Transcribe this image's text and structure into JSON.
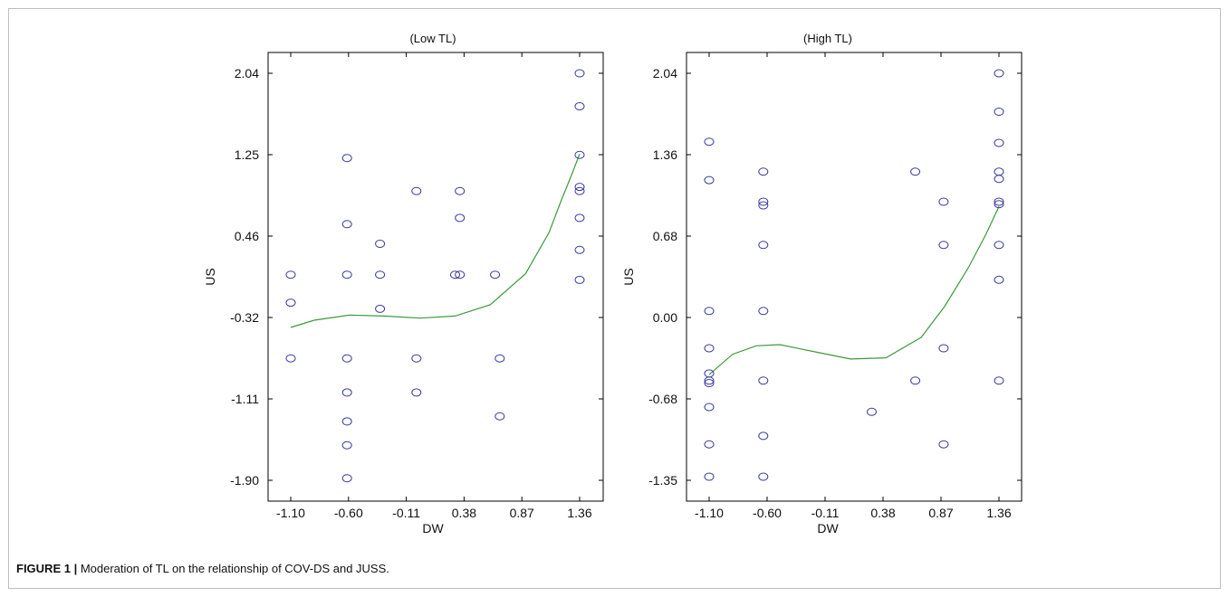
{
  "chart_data": [
    {
      "type": "scatter",
      "title": "(Low TL)",
      "xlabel": "DW",
      "ylabel": "US",
      "x_ticks": [
        "-1.10",
        "-0.60",
        "-0.11",
        "0.38",
        "0.87",
        "1.36"
      ],
      "y_ticks": [
        "2.04",
        "1.25",
        "0.46",
        "-0.32",
        "-1.11",
        "-1.90"
      ],
      "xlim": [
        -1.1,
        1.36
      ],
      "ylim": [
        -1.9,
        2.04
      ],
      "colors": {
        "points": "#3a3aa0",
        "curve": "#3b9a3b"
      },
      "points": [
        [
          1.36,
          2.04
        ],
        [
          1.36,
          1.72
        ],
        [
          1.36,
          1.25
        ],
        [
          1.36,
          0.94
        ],
        [
          1.36,
          0.9
        ],
        [
          1.36,
          0.64
        ],
        [
          1.36,
          0.33
        ],
        [
          1.36,
          0.04
        ],
        [
          -0.62,
          1.22
        ],
        [
          -0.62,
          0.58
        ],
        [
          -0.62,
          0.09
        ],
        [
          -0.62,
          -0.72
        ],
        [
          -0.62,
          -1.05
        ],
        [
          -0.62,
          -1.33
        ],
        [
          -0.62,
          -1.56
        ],
        [
          -0.62,
          -1.88
        ],
        [
          -1.1,
          0.09
        ],
        [
          -1.1,
          -0.18
        ],
        [
          -1.1,
          -0.72
        ],
        [
          -0.34,
          0.39
        ],
        [
          -0.34,
          0.09
        ],
        [
          -0.34,
          -0.24
        ],
        [
          -0.03,
          0.9
        ],
        [
          -0.03,
          -0.72
        ],
        [
          -0.03,
          -1.05
        ],
        [
          0.3,
          0.09
        ],
        [
          0.34,
          0.9
        ],
        [
          0.34,
          0.64
        ],
        [
          0.34,
          0.09
        ],
        [
          0.64,
          0.09
        ],
        [
          0.68,
          -0.72
        ],
        [
          0.68,
          -1.28
        ]
      ],
      "curve": [
        [
          -1.1,
          -0.42
        ],
        [
          -0.9,
          -0.35
        ],
        [
          -0.6,
          -0.3
        ],
        [
          -0.3,
          -0.31
        ],
        [
          0.0,
          -0.33
        ],
        [
          0.3,
          -0.31
        ],
        [
          0.6,
          -0.2
        ],
        [
          0.9,
          0.1
        ],
        [
          1.1,
          0.5
        ],
        [
          1.2,
          0.8
        ],
        [
          1.3,
          1.08
        ],
        [
          1.36,
          1.26
        ]
      ]
    },
    {
      "type": "scatter",
      "title": "(High TL)",
      "xlabel": "DW",
      "ylabel": "US",
      "x_ticks": [
        "-1.10",
        "-0.60",
        "-0.11",
        "0.38",
        "0.87",
        "1.36"
      ],
      "y_ticks": [
        "2.04",
        "1.36",
        "0.68",
        "0.00",
        "-0.68",
        "-1.35"
      ],
      "xlim": [
        -1.1,
        1.36
      ],
      "ylim": [
        -1.35,
        2.04
      ],
      "colors": {
        "points": "#3a3aa0",
        "curve": "#3b9a3b"
      },
      "points": [
        [
          1.36,
          2.04
        ],
        [
          1.36,
          1.72
        ],
        [
          1.36,
          1.46
        ],
        [
          1.36,
          1.22
        ],
        [
          1.36,
          1.16
        ],
        [
          1.36,
          0.97
        ],
        [
          1.36,
          0.95
        ],
        [
          1.36,
          0.61
        ],
        [
          1.36,
          0.32
        ],
        [
          1.36,
          -0.52
        ],
        [
          -1.1,
          1.47
        ],
        [
          -1.1,
          1.15
        ],
        [
          -1.1,
          0.06
        ],
        [
          -1.1,
          -0.25
        ],
        [
          -1.1,
          -0.46
        ],
        [
          -1.1,
          -0.52
        ],
        [
          -1.1,
          -0.54
        ],
        [
          -1.1,
          -0.74
        ],
        [
          -1.1,
          -1.05
        ],
        [
          -1.1,
          -1.32
        ],
        [
          -0.64,
          1.22
        ],
        [
          -0.64,
          0.97
        ],
        [
          -0.64,
          0.94
        ],
        [
          -0.64,
          0.61
        ],
        [
          -0.64,
          0.06
        ],
        [
          -0.64,
          -0.52
        ],
        [
          -0.64,
          -0.98
        ],
        [
          -0.64,
          -1.32
        ],
        [
          0.28,
          -0.78
        ],
        [
          0.65,
          1.22
        ],
        [
          0.65,
          -0.52
        ],
        [
          0.89,
          0.97
        ],
        [
          0.89,
          0.61
        ],
        [
          0.89,
          -0.25
        ],
        [
          0.89,
          -1.05
        ]
      ],
      "curve": [
        [
          -1.1,
          -0.47
        ],
        [
          -0.9,
          -0.3
        ],
        [
          -0.7,
          -0.23
        ],
        [
          -0.5,
          -0.22
        ],
        [
          -0.2,
          -0.28
        ],
        [
          0.1,
          -0.34
        ],
        [
          0.4,
          -0.33
        ],
        [
          0.7,
          -0.16
        ],
        [
          0.9,
          0.1
        ],
        [
          1.1,
          0.42
        ],
        [
          1.25,
          0.7
        ],
        [
          1.36,
          0.93
        ]
      ]
    }
  ],
  "caption": {
    "label": "FIGURE 1 |",
    "text": " Moderation of TL on the relationship of COV-DS and JUSS."
  }
}
